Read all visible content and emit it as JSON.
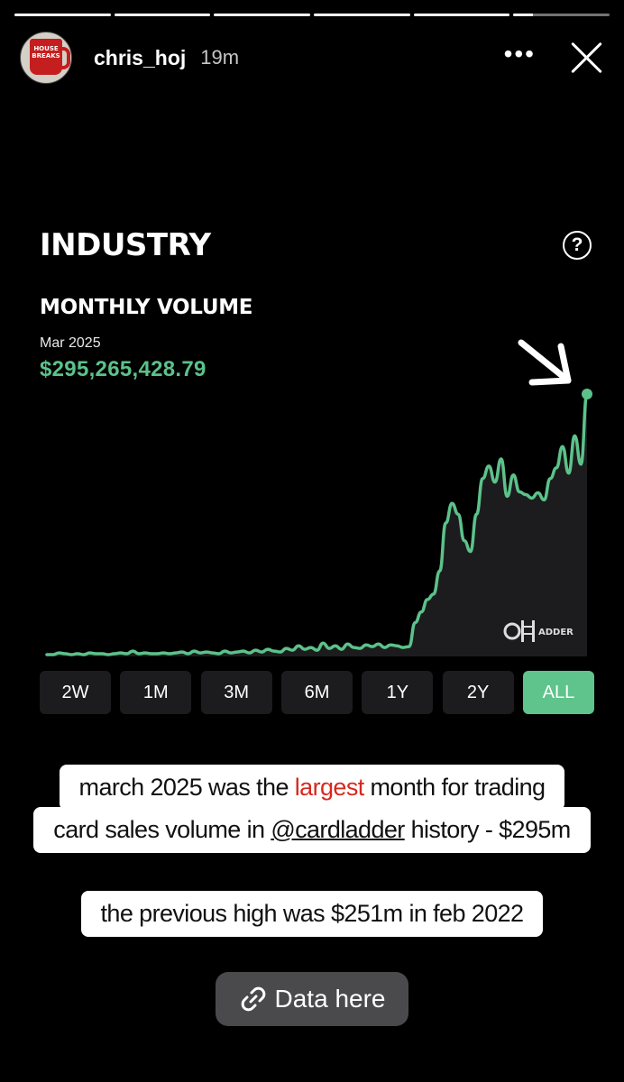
{
  "story": {
    "progress_segments": [
      1,
      1,
      1,
      1,
      1,
      0.2
    ],
    "username": "chris_hoj",
    "time_ago": "19m",
    "avatar_text": "HOUSE BREAKS"
  },
  "card": {
    "title": "INDUSTRY",
    "subtitle": "MONTHLY VOLUME",
    "month_label": "Mar 2025",
    "value": "$295,265,428.79",
    "watermark": "CARDLADDER",
    "range_buttons": [
      "2W",
      "1M",
      "3M",
      "6M",
      "1Y",
      "2Y",
      "ALL"
    ],
    "active_range": "ALL",
    "accent_color": "#5ec48b"
  },
  "captions": {
    "line1_before": "march 2025 was the ",
    "line1_highlight": "largest",
    "line1_after": " month for trading",
    "line2_before": "card sales volume in ",
    "line2_mention": "@cardladder",
    "line2_after": " history - $295m",
    "line3": "the previous high was $251m in feb 2022",
    "highlight_color": "#d6291e"
  },
  "link": {
    "label": "Data here"
  },
  "chart_data": {
    "type": "area",
    "title": "MONTHLY VOLUME",
    "xlabel": "",
    "ylabel": "",
    "grid": false,
    "values": [
      2,
      2,
      4,
      3,
      2,
      3,
      2,
      4,
      3,
      3,
      2,
      3,
      4,
      3,
      6,
      3,
      4,
      3,
      3,
      4,
      3,
      4,
      5,
      3,
      6,
      4,
      5,
      4,
      3,
      6,
      4,
      5,
      6,
      4,
      7,
      5,
      8,
      6,
      5,
      9,
      7,
      12,
      8,
      10,
      7,
      15,
      9,
      12,
      8,
      14,
      10,
      9,
      13,
      11,
      14,
      10,
      13,
      12,
      10,
      11,
      38,
      50,
      64,
      70,
      96,
      150,
      172,
      160,
      130,
      118,
      160,
      200,
      214,
      196,
      222,
      180,
      204,
      185,
      182,
      178,
      184,
      176,
      200,
      212,
      236,
      206,
      248,
      216,
      295
    ],
    "last_point_value": 295265428.79,
    "last_point_label": "Mar 2025"
  }
}
